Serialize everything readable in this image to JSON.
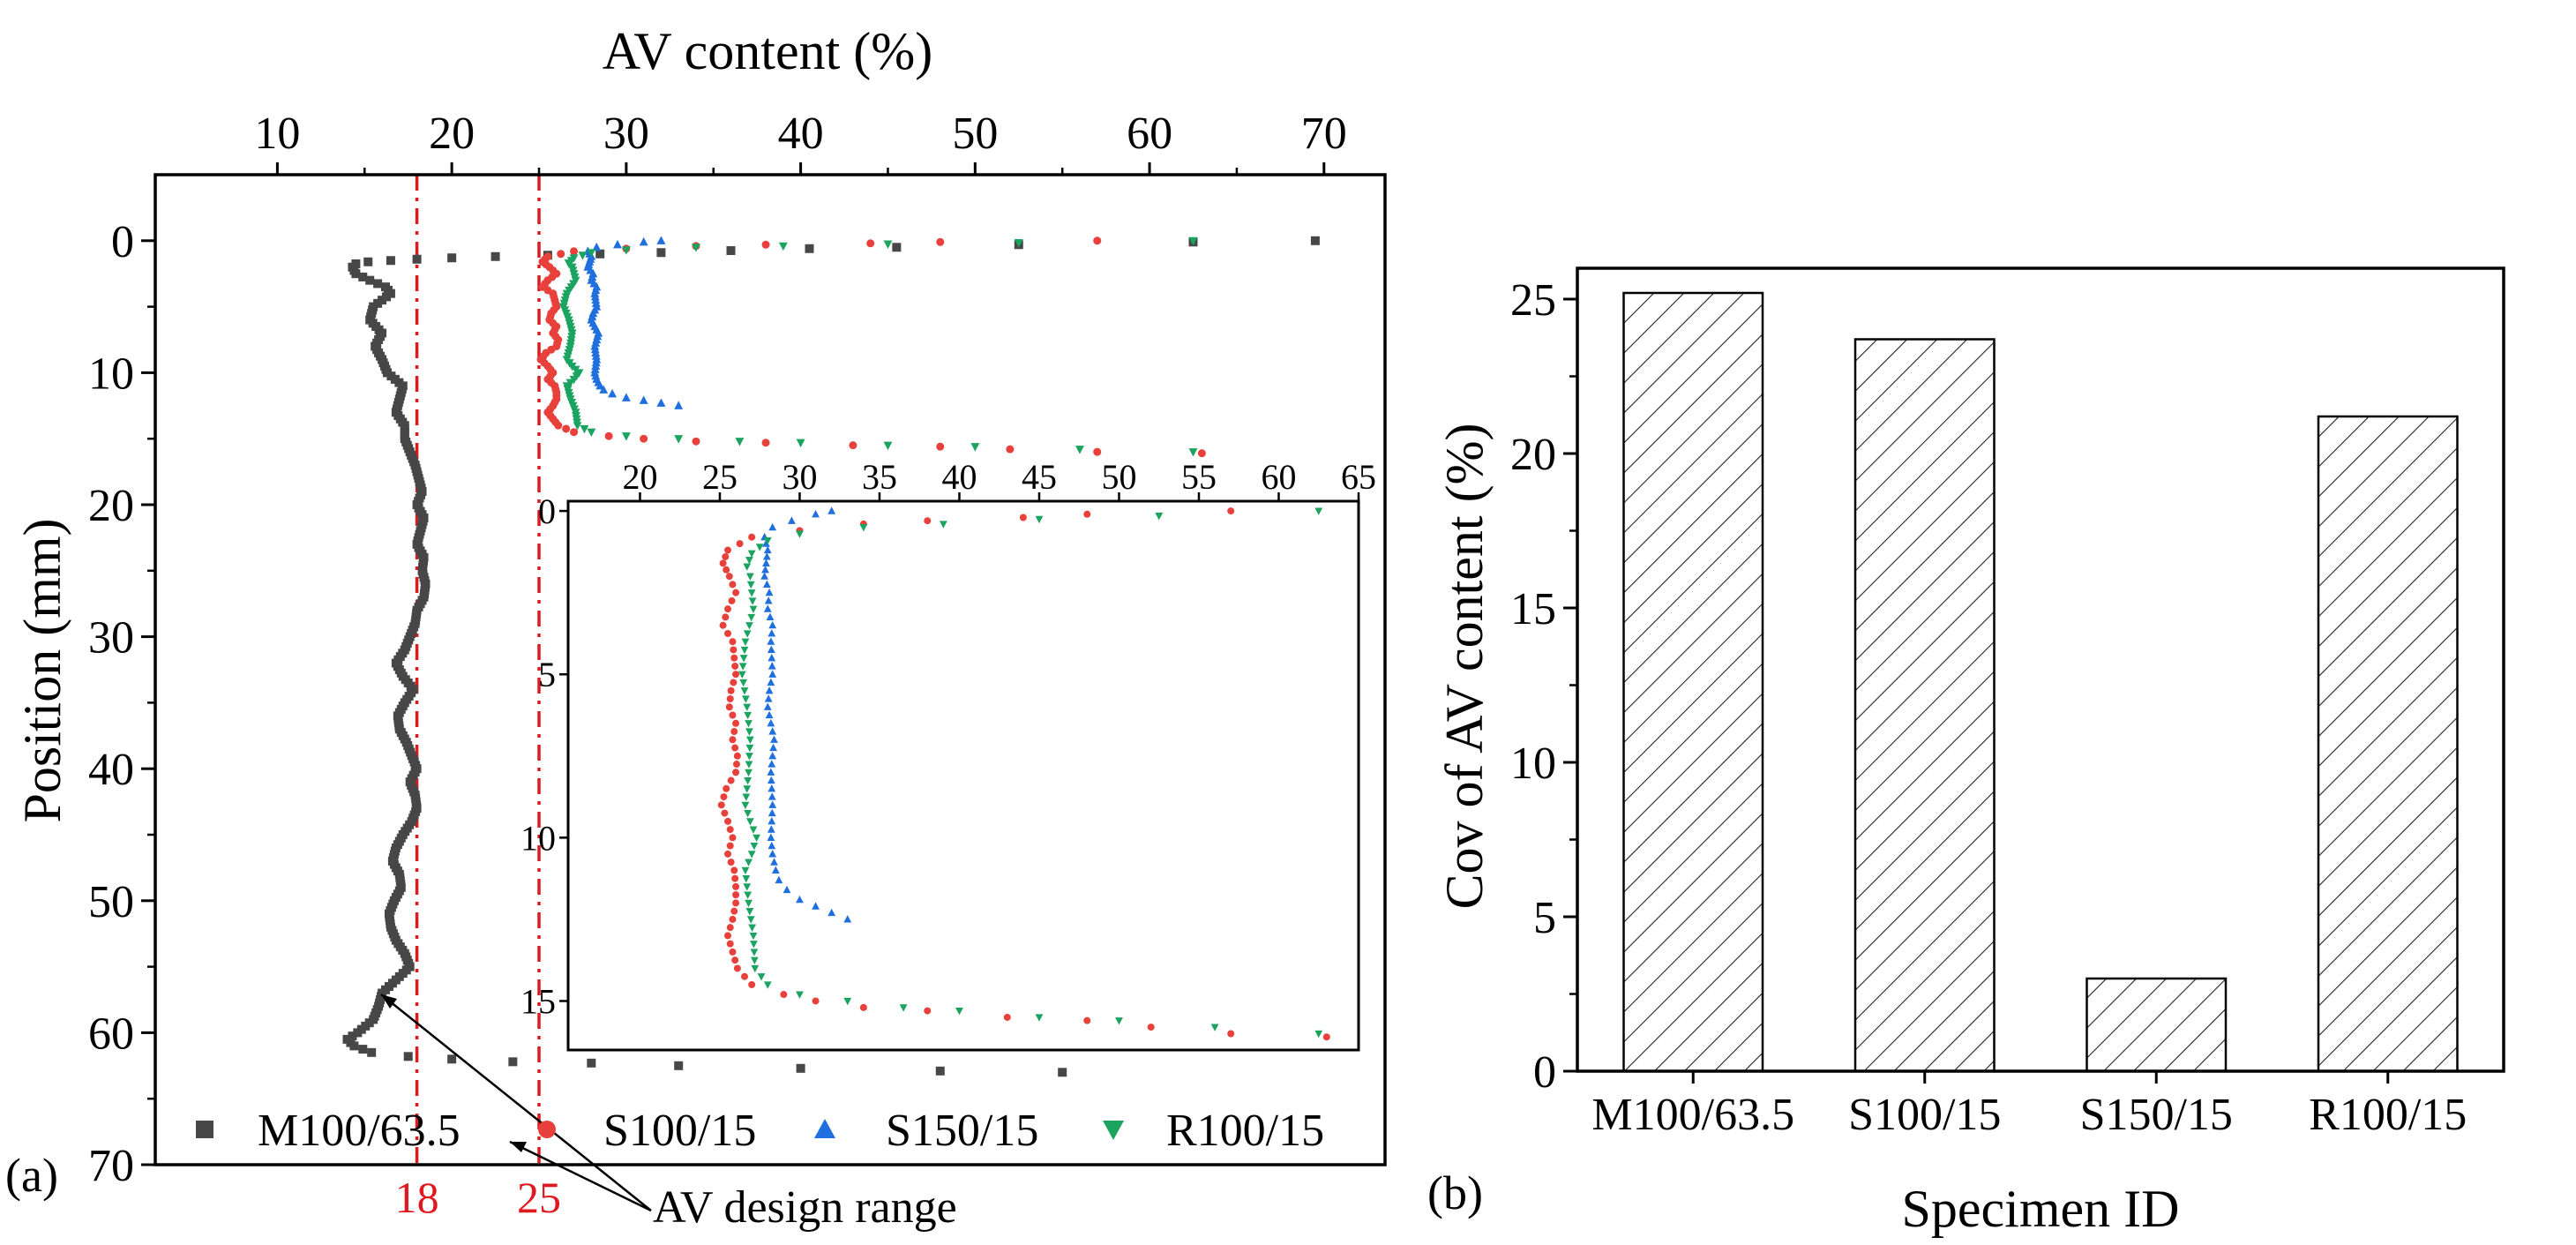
{
  "panel_labels": {
    "a": "(a)",
    "b": "(b)"
  },
  "colors": {
    "M100/63.5": "#474747",
    "S100/15": "#e8403a",
    "S150/15": "#1f6fde",
    "R100/15": "#1ba360",
    "design_line": "#e0191e"
  },
  "annotations": {
    "design_range_label": "AV design range",
    "design_low_label": "18",
    "design_high_label": "25"
  },
  "chart_data": [
    {
      "id": "a-main",
      "type": "scatter",
      "title": "",
      "xlabel": "AV content (%)",
      "ylabel": "Position (mm)",
      "xlim": [
        3,
        73.5
      ],
      "ylim": [
        70,
        -5
      ],
      "xticks": [
        10,
        20,
        30,
        40,
        50,
        60,
        70
      ],
      "yticks": [
        0,
        10,
        20,
        30,
        40,
        50,
        60,
        70
      ],
      "xtick_labels": [
        "10",
        "20",
        "30",
        "40",
        "50",
        "60",
        "70"
      ],
      "ytick_labels": [
        "0",
        "10",
        "20",
        "30",
        "40",
        "50",
        "60",
        "70"
      ],
      "reference_lines": [
        18,
        25
      ],
      "legend": [
        "M100/63.5",
        "S100/15",
        "S150/15",
        "R100/15"
      ],
      "legend_position": "bottom",
      "series": [
        {
          "name": "M100/63.5",
          "marker": "square",
          "points": [
            [
              69.5,
              0.0
            ],
            [
              62.5,
              0.1
            ],
            [
              52.5,
              0.3
            ],
            [
              45.5,
              0.5
            ],
            [
              40.5,
              0.6
            ],
            [
              36,
              0.75
            ],
            [
              32,
              0.9
            ],
            [
              28.5,
              1.0
            ],
            [
              25.5,
              1.1
            ],
            [
              22.5,
              1.2
            ],
            [
              20,
              1.3
            ],
            [
              18,
              1.4
            ],
            [
              16.5,
              1.5
            ],
            [
              15.2,
              1.6
            ],
            [
              14.5,
              1.75
            ],
            [
              14.3,
              2.0
            ],
            [
              14.5,
              2.5
            ],
            [
              15.3,
              3.0
            ],
            [
              16.2,
              3.5
            ],
            [
              16.5,
              4.0
            ],
            [
              16.0,
              4.5
            ],
            [
              15.5,
              5.0
            ],
            [
              15.3,
              6.0
            ],
            [
              16.0,
              7.0
            ],
            [
              15.6,
              8.0
            ],
            [
              16.0,
              9.0
            ],
            [
              16.3,
              10.0
            ],
            [
              17.2,
              11.0
            ],
            [
              17.0,
              12.0
            ],
            [
              16.8,
              13.0
            ],
            [
              17.3,
              14.0
            ],
            [
              17.3,
              15.0
            ],
            [
              17.6,
              16.0
            ],
            [
              17.9,
              17.0
            ],
            [
              18.1,
              18.0
            ],
            [
              18.3,
              19.0
            ],
            [
              18.0,
              20.0
            ],
            [
              18.4,
              21.0
            ],
            [
              18.2,
              22.0
            ],
            [
              18.0,
              23.0
            ],
            [
              18.4,
              24.0
            ],
            [
              18.3,
              25.0
            ],
            [
              18.5,
              26.0
            ],
            [
              18.4,
              27.0
            ],
            [
              18.0,
              28.0
            ],
            [
              17.9,
              29.0
            ],
            [
              17.6,
              30.0
            ],
            [
              17.3,
              31.0
            ],
            [
              16.8,
              32.0
            ],
            [
              17.2,
              33.0
            ],
            [
              17.8,
              34.0
            ],
            [
              17.3,
              35.0
            ],
            [
              16.9,
              36.0
            ],
            [
              17.0,
              37.0
            ],
            [
              17.4,
              38.0
            ],
            [
              17.7,
              39.0
            ],
            [
              18.0,
              40.0
            ],
            [
              17.6,
              41.0
            ],
            [
              17.9,
              42.0
            ],
            [
              18.0,
              43.0
            ],
            [
              17.7,
              44.0
            ],
            [
              17.2,
              45.0
            ],
            [
              16.8,
              46.0
            ],
            [
              16.6,
              47.0
            ],
            [
              17.0,
              48.0
            ],
            [
              17.1,
              49.0
            ],
            [
              16.7,
              50.0
            ],
            [
              16.4,
              51.0
            ],
            [
              16.5,
              52.0
            ],
            [
              16.8,
              53.0
            ],
            [
              17.3,
              54.0
            ],
            [
              17.6,
              55.0
            ],
            [
              16.8,
              56.0
            ],
            [
              16.0,
              57.0
            ],
            [
              15.8,
              58.0
            ],
            [
              15.5,
              59.0
            ],
            [
              14.6,
              60.0
            ],
            [
              14.0,
              60.5
            ],
            [
              14.4,
              61.0
            ],
            [
              15.4,
              61.5
            ],
            [
              17.5,
              61.8
            ],
            [
              20,
              62.0
            ],
            [
              23.5,
              62.2
            ],
            [
              28,
              62.3
            ],
            [
              33,
              62.5
            ],
            [
              40,
              62.7
            ],
            [
              48,
              62.9
            ],
            [
              55,
              63.0
            ]
          ]
        },
        {
          "name": "S100/15",
          "marker": "circle",
          "points": [
            [
              57,
              0.0
            ],
            [
              48,
              0.1
            ],
            [
              44,
              0.2
            ],
            [
              38,
              0.3
            ],
            [
              34,
              0.4
            ],
            [
              30,
              0.6
            ],
            [
              27,
              0.8
            ],
            [
              25.5,
              1.2
            ],
            [
              25.2,
              1.6
            ],
            [
              25.6,
              2.0
            ],
            [
              26.0,
              2.5
            ],
            [
              25.5,
              3.0
            ],
            [
              25.2,
              3.5
            ],
            [
              25.8,
              4.0
            ],
            [
              26.0,
              5.0
            ],
            [
              25.7,
              5.5
            ],
            [
              25.6,
              6.0
            ],
            [
              26.0,
              6.5
            ],
            [
              25.8,
              7.0
            ],
            [
              26.1,
              7.5
            ],
            [
              26.0,
              8.0
            ],
            [
              25.4,
              8.5
            ],
            [
              25.1,
              9.0
            ],
            [
              25.5,
              9.5
            ],
            [
              25.8,
              10.0
            ],
            [
              25.5,
              10.5
            ],
            [
              25.9,
              11.0
            ],
            [
              26.0,
              11.5
            ],
            [
              26.0,
              12.0
            ],
            [
              25.8,
              12.5
            ],
            [
              25.5,
              13.0
            ],
            [
              25.8,
              13.5
            ],
            [
              26.1,
              14.0
            ],
            [
              27,
              14.5
            ],
            [
              29,
              14.8
            ],
            [
              31,
              15.0
            ],
            [
              34,
              15.2
            ],
            [
              38,
              15.3
            ],
            [
              43,
              15.5
            ],
            [
              48,
              15.6
            ],
            [
              52,
              15.8
            ],
            [
              57,
              16.0
            ],
            [
              63,
              16.1
            ]
          ]
        },
        {
          "name": "S150/15",
          "marker": "triangle",
          "points": [
            [
              32,
              0.0
            ],
            [
              31,
              0.1
            ],
            [
              29.5,
              0.3
            ],
            [
              28.3,
              0.5
            ],
            [
              27.8,
              0.8
            ],
            [
              28,
              1.2
            ],
            [
              27.9,
              1.6
            ],
            [
              27.8,
              2.0
            ],
            [
              28.1,
              2.5
            ],
            [
              28.0,
              3.0
            ],
            [
              28.3,
              3.5
            ],
            [
              28.2,
              4.0
            ],
            [
              28.3,
              5.0
            ],
            [
              28.1,
              5.5
            ],
            [
              28.0,
              6.0
            ],
            [
              28.4,
              7.0
            ],
            [
              28.2,
              8.0
            ],
            [
              28.3,
              9.0
            ],
            [
              28.2,
              10.0
            ],
            [
              28.3,
              10.5
            ],
            [
              28.5,
              11.0
            ],
            [
              28.7,
              11.3
            ],
            [
              29.2,
              11.6
            ],
            [
              30,
              11.9
            ],
            [
              31,
              12.1
            ],
            [
              32,
              12.3
            ],
            [
              33,
              12.5
            ]
          ]
        },
        {
          "name": "R100/15",
          "marker": "triangle-down",
          "points": [
            [
              62.5,
              0.0
            ],
            [
              52.5,
              0.15
            ],
            [
              45,
              0.25
            ],
            [
              39,
              0.4
            ],
            [
              34,
              0.5
            ],
            [
              30,
              0.7
            ],
            [
              28,
              0.9
            ],
            [
              27,
              1.3
            ],
            [
              26.7,
              1.7
            ],
            [
              26.9,
              2.0
            ],
            [
              27.1,
              3.0
            ],
            [
              26.6,
              4.0
            ],
            [
              26.4,
              5.0
            ],
            [
              26.7,
              6.0
            ],
            [
              26.9,
              7.0
            ],
            [
              26.8,
              8.0
            ],
            [
              26.6,
              9.0
            ],
            [
              26.9,
              9.5
            ],
            [
              27.3,
              10.0
            ],
            [
              27.0,
              10.5
            ],
            [
              26.6,
              11.0
            ],
            [
              26.8,
              12.0
            ],
            [
              27.1,
              13.0
            ],
            [
              27.2,
              14.0
            ],
            [
              28,
              14.5
            ],
            [
              30,
              14.8
            ],
            [
              33,
              15.0
            ],
            [
              36.5,
              15.2
            ],
            [
              40,
              15.3
            ],
            [
              45,
              15.5
            ],
            [
              50,
              15.6
            ],
            [
              56,
              15.8
            ],
            [
              62.5,
              16.0
            ]
          ]
        }
      ]
    },
    {
      "id": "a-inset",
      "type": "scatter",
      "title": "",
      "xlabel": "",
      "ylabel": "",
      "xlim": [
        15.5,
        65
      ],
      "ylim": [
        16.5,
        -0.3
      ],
      "xticks": [
        20,
        25,
        30,
        35,
        40,
        45,
        50,
        55,
        60,
        65
      ],
      "yticks": [
        0,
        5,
        10,
        15
      ],
      "xtick_labels": [
        "20",
        "25",
        "30",
        "35",
        "40",
        "45",
        "50",
        "55",
        "60",
        "65"
      ],
      "ytick_labels": [
        "0",
        "5",
        "10",
        "15"
      ],
      "series_ref": [
        "S100/15",
        "S150/15",
        "R100/15"
      ],
      "note": "zoomed view of the 0-16 mm region for S100/15, S150/15 and R100/15"
    },
    {
      "id": "b",
      "type": "bar",
      "title": "",
      "xlabel": "Specimen ID",
      "ylabel": "Cov of AV content (%)",
      "categories": [
        "M100/63.5",
        "S100/15",
        "S150/15",
        "R100/15"
      ],
      "values": [
        25.2,
        23.7,
        3.0,
        21.2
      ],
      "ylim": [
        0,
        26
      ],
      "yticks": [
        0,
        5,
        10,
        15,
        20,
        25
      ],
      "ytick_labels": [
        "0",
        "5",
        "10",
        "15",
        "20",
        "25"
      ],
      "bar_fill": "hatched"
    }
  ]
}
